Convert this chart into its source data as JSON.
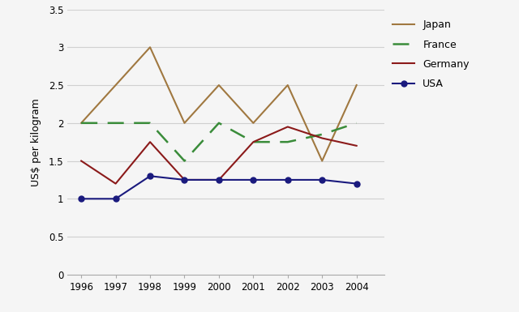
{
  "years": [
    1996,
    1997,
    1998,
    1999,
    2000,
    2001,
    2002,
    2003,
    2004
  ],
  "japan": [
    2.0,
    2.5,
    3.0,
    2.0,
    2.5,
    2.0,
    2.5,
    1.5,
    2.5
  ],
  "france": [
    2.0,
    2.0,
    2.0,
    1.5,
    2.0,
    1.75,
    1.75,
    1.85,
    2.0
  ],
  "germany": [
    1.5,
    1.2,
    1.75,
    1.25,
    1.25,
    1.75,
    1.95,
    1.8,
    1.7
  ],
  "usa": [
    1.0,
    1.0,
    1.3,
    1.25,
    1.25,
    1.25,
    1.25,
    1.25,
    1.2
  ],
  "japan_color": "#a07840",
  "france_color": "#3a8c3a",
  "germany_color": "#8b1a1a",
  "usa_color": "#1a1a7e",
  "ylabel": "US$ per kilogram",
  "ylim": [
    0,
    3.5
  ],
  "yticks": [
    0,
    0.5,
    1.0,
    1.5,
    2.0,
    2.5,
    3.0,
    3.5
  ],
  "background_color": "#f5f5f5",
  "grid_color": "#d0d0d0",
  "legend_labels": [
    "Japan",
    "France",
    "Germany",
    "USA"
  ]
}
